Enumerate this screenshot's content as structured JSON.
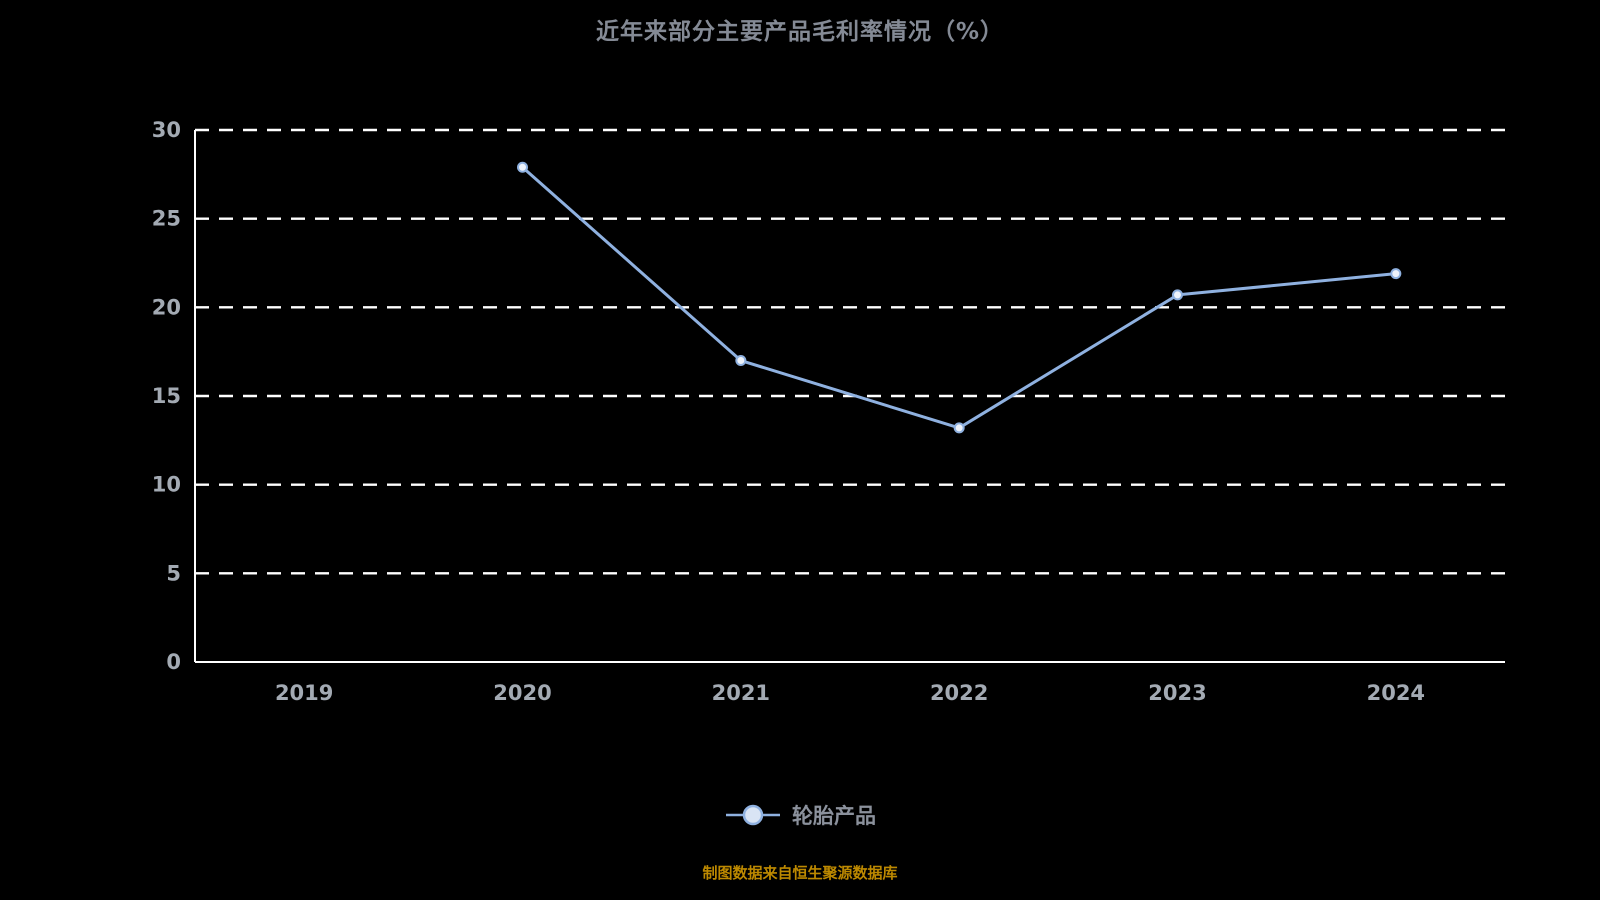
{
  "title": "近年来部分主要产品毛利率情况（%）",
  "legend": {
    "label": "轮胎产品"
  },
  "source": "制图数据来自恒生聚源数据库",
  "colors": {
    "background": "#000000",
    "line": "#8fb1e0",
    "marker_fill": "#eef3fb",
    "legend_marker_fill": "#d9e4f4",
    "grid": "#ffffff",
    "axis": "#ffffff",
    "tick_label": "#a3aab3",
    "title": "#848a95",
    "legend_label": "#8b919c",
    "source": "#bd8900"
  },
  "chart_data": {
    "type": "line",
    "categories": [
      "2019",
      "2020",
      "2021",
      "2022",
      "2023",
      "2024"
    ],
    "series": [
      {
        "name": "轮胎产品",
        "values": [
          null,
          27.9,
          17.0,
          13.2,
          20.7,
          21.9
        ]
      }
    ],
    "title": "近年来部分主要产品毛利率情况（%）",
    "xlabel": "",
    "ylabel": "",
    "ylim": [
      0,
      30
    ],
    "yticks": [
      0,
      5,
      10,
      15,
      20,
      25,
      30
    ],
    "grid": "dashed-horizontal",
    "legend_position": "bottom"
  }
}
